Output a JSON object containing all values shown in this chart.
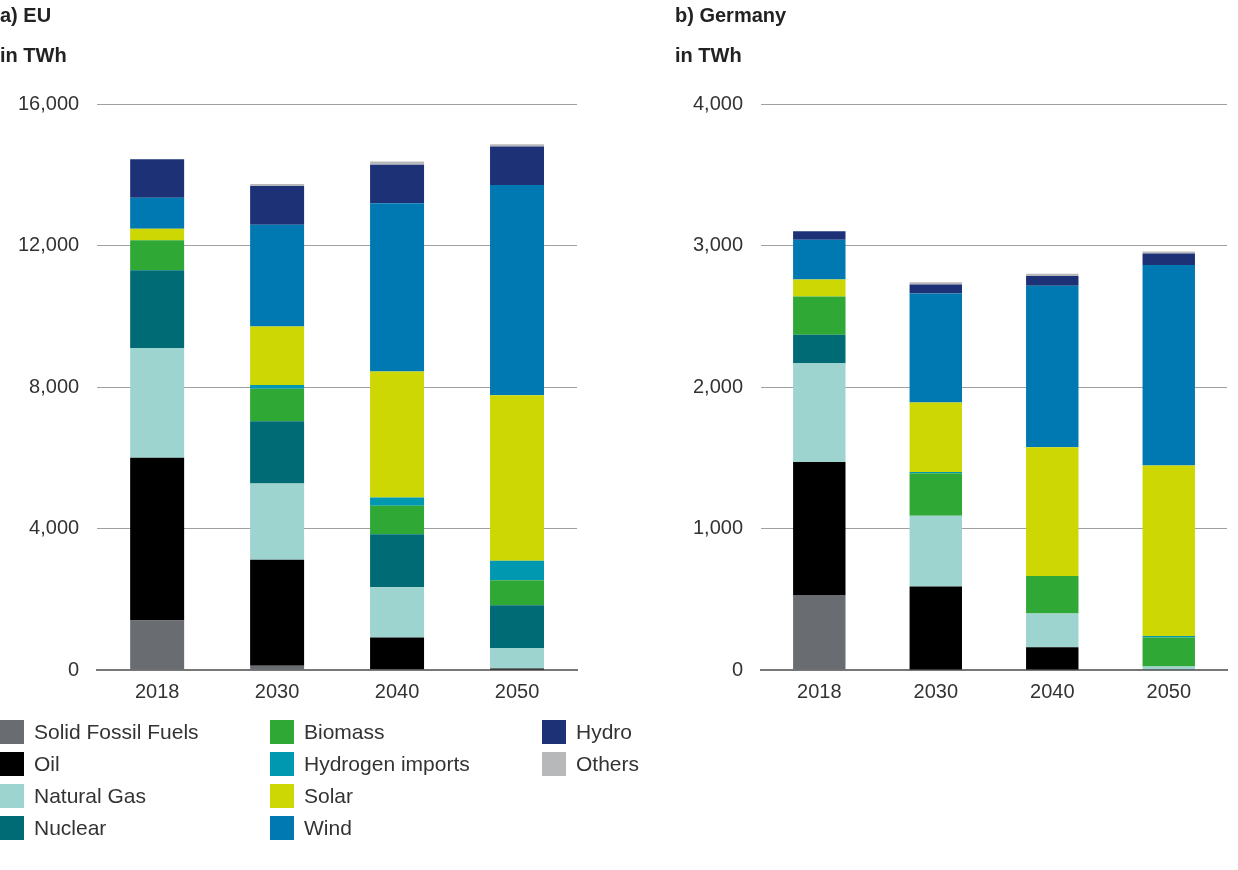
{
  "chart_data": [
    {
      "type": "bar",
      "title": "a) EU",
      "ylabel": "in TWh",
      "categories": [
        "2018",
        "2030",
        "2040",
        "2050"
      ],
      "stacked": true,
      "grid": "y",
      "legend": "bottom",
      "ylim": [
        0,
        16000
      ],
      "yticks": [
        0,
        {
          "value": 4000,
          "label": "4,000"
        },
        {
          "value": 8000,
          "label": "8,000"
        },
        {
          "value": 12000,
          "label": "12,000"
        },
        {
          "value": 16000,
          "label": "16,000"
        }
      ],
      "series": [
        {
          "name": "Solid Fossil Fuels",
          "color": "#696c71",
          "values": [
            1400,
            120,
            20,
            0
          ]
        },
        {
          "name": "Oil",
          "color": "#000000",
          "values": [
            4600,
            3000,
            900,
            40
          ]
        },
        {
          "name": "Natural Gas",
          "color": "#9dd4cf",
          "values": [
            3100,
            2150,
            1420,
            580
          ]
        },
        {
          "name": "Nuclear",
          "color": "#006a75",
          "values": [
            2200,
            1760,
            1500,
            1210
          ]
        },
        {
          "name": "Biomass",
          "color": "#2fa836",
          "values": [
            850,
            920,
            800,
            710
          ]
        },
        {
          "name": "Hydrogen imports",
          "color": "#0098b0",
          "values": [
            0,
            110,
            235,
            550
          ]
        },
        {
          "name": "Solar",
          "color": "#cdd704",
          "values": [
            320,
            1650,
            3560,
            4680
          ]
        },
        {
          "name": "Wind",
          "color": "#0078b1",
          "values": [
            880,
            2880,
            4760,
            5940
          ]
        },
        {
          "name": "Hydro",
          "color": "#1d3177",
          "values": [
            1090,
            1090,
            1090,
            1090
          ]
        },
        {
          "name": "Others",
          "color": "#b7b8ba",
          "values": [
            0,
            60,
            90,
            60
          ]
        }
      ]
    },
    {
      "type": "bar",
      "title": "b) Germany",
      "ylabel": "in TWh",
      "categories": [
        "2018",
        "2030",
        "2040",
        "2050"
      ],
      "stacked": true,
      "grid": "y",
      "ylim": [
        0,
        4000
      ],
      "yticks": [
        0,
        {
          "value": 1000,
          "label": "1,000"
        },
        {
          "value": 2000,
          "label": "2,000"
        },
        {
          "value": 3000,
          "label": "3,000"
        },
        {
          "value": 4000,
          "label": "4,000"
        }
      ],
      "series": [
        {
          "color": "#696c71",
          "values": [
            530,
            0,
            0,
            0
          ]
        },
        {
          "color": "#000000",
          "values": [
            940,
            590,
            160,
            5
          ]
        },
        {
          "color": "#9dd4cf",
          "values": [
            700,
            500,
            240,
            20
          ]
        },
        {
          "color": "#006a75",
          "values": [
            200,
            0,
            0,
            0
          ]
        },
        {
          "color": "#2fa836",
          "values": [
            270,
            300,
            265,
            205
          ]
        },
        {
          "color": "#0098b0",
          "values": [
            0,
            10,
            0,
            10
          ]
        },
        {
          "color": "#cdd704",
          "values": [
            120,
            490,
            910,
            1205
          ]
        },
        {
          "color": "#0078b1",
          "values": [
            280,
            770,
            1140,
            1418
          ]
        },
        {
          "color": "#1d3177",
          "values": [
            60,
            65,
            70,
            80
          ]
        },
        {
          "color": "#b7b8ba",
          "values": [
            0,
            15,
            15,
            15
          ]
        }
      ]
    }
  ]
}
